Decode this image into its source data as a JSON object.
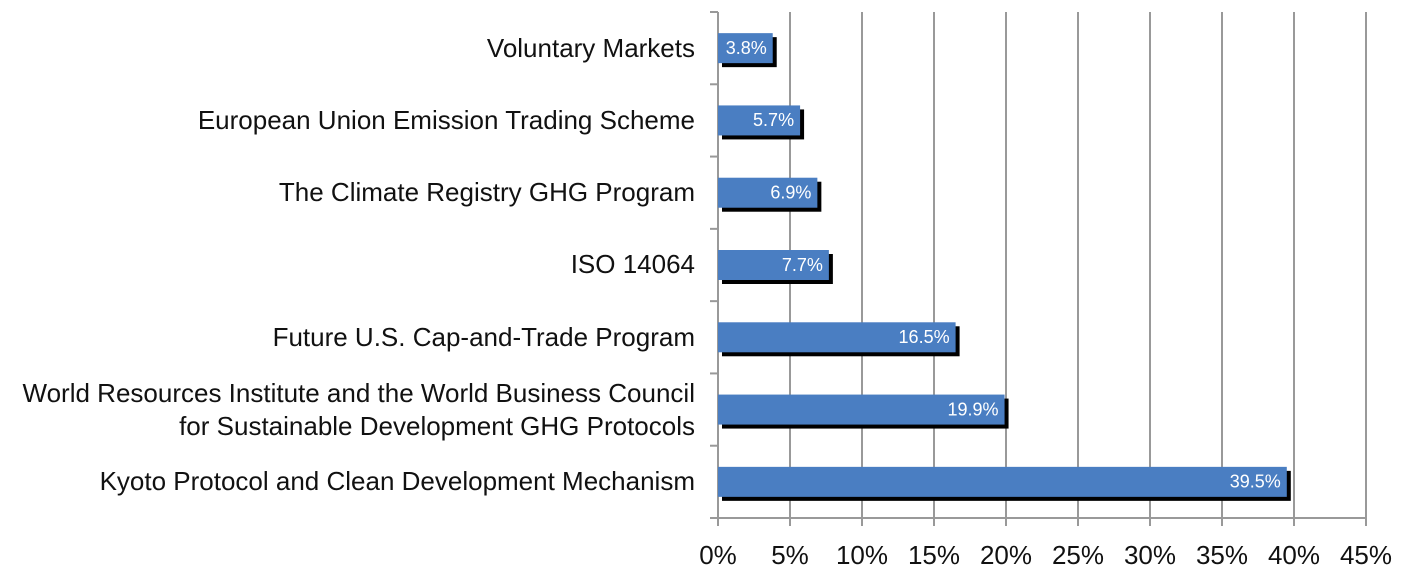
{
  "chart_data": {
    "type": "bar",
    "orientation": "horizontal",
    "categories": [
      "Voluntary Markets",
      "European Union Emission Trading Scheme",
      "The Climate Registry GHG Program",
      "ISO 14064",
      "Future U.S. Cap-and-Trade Program",
      "World Resources Institute and the World Business Council for Sustainable Development GHG Protocols",
      "Kyoto Protocol and Clean Development Mechanism"
    ],
    "values": [
      3.8,
      5.7,
      6.9,
      7.7,
      16.5,
      19.9,
      39.5
    ],
    "value_labels": [
      "3.8%",
      "5.7%",
      "6.9%",
      "7.7%",
      "16.5%",
      "19.9%",
      "39.5%"
    ],
    "color": "#4a7ec2",
    "xlim": [
      0,
      45
    ],
    "xticks": [
      {
        "value": 0,
        "label": "0%"
      },
      {
        "value": 5,
        "label": "5%"
      },
      {
        "value": 10,
        "label": "10%"
      },
      {
        "value": 15,
        "label": "15%"
      },
      {
        "value": 20,
        "label": "20%"
      },
      {
        "value": 25,
        "label": "25%"
      },
      {
        "value": 30,
        "label": "30%"
      },
      {
        "value": 35,
        "label": "35%"
      },
      {
        "value": 40,
        "label": "40%"
      },
      {
        "value": 45,
        "label": "45%"
      }
    ],
    "grid": true
  }
}
